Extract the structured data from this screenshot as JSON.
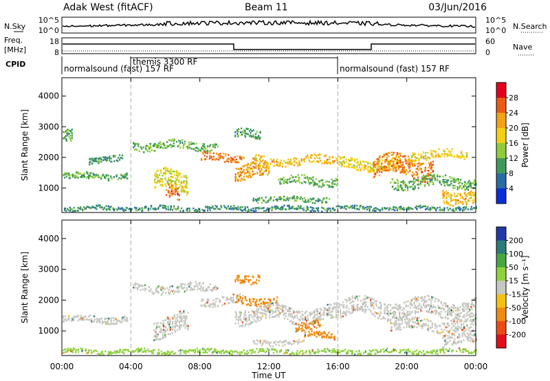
{
  "header": {
    "station": "Adak West (fitACF)",
    "beam": "Beam 11",
    "date": "03/Jun/2016"
  },
  "noise_panel": {
    "left_label": "N.Sky",
    "right_label": "N.Search",
    "left_ticks": [
      "10^5",
      "10^0"
    ],
    "right_ticks": [
      "10^5",
      "10^0"
    ]
  },
  "freq_panel": {
    "left_label_1": "Freq.",
    "left_label_2": "[MHz]",
    "right_label": "Nave",
    "left_ticks": [
      "18",
      "8"
    ],
    "right_ticks": [
      "60",
      "0"
    ]
  },
  "cpid": {
    "label": "CPID",
    "segments": [
      "normalsound (fast) 157 RF",
      "themis 3300 RF",
      "normalsound (fast) 157 RF"
    ]
  },
  "power_colorbar": {
    "label": "Power [dB]",
    "ticks": [
      "28",
      "24",
      "20",
      "16",
      "12",
      "8",
      "4"
    ],
    "colors": [
      "#e3001b",
      "#ec5a15",
      "#f2a312",
      "#f4cf10",
      "#8fcc3a",
      "#3f9a5a",
      "#2b6aa6",
      "#0a2fd8"
    ]
  },
  "velocity_colorbar": {
    "label": "Velocity [m s⁻¹]",
    "ticks": [
      "200",
      "100",
      "50",
      "15",
      "-15",
      "-50",
      "-100",
      "-200"
    ],
    "colors": [
      "#1f3aa8",
      "#2d7c78",
      "#48a640",
      "#8ed23c",
      "#c8c8c2",
      "#f4c20e",
      "#f08a10",
      "#ec4c14",
      "#e30d1a"
    ]
  },
  "chart_data": [
    {
      "type": "heatmap",
      "title": "Power",
      "ylabel": "Slant Range [km]",
      "xlabel": "Time UT",
      "xlim": [
        0,
        24
      ],
      "ylim": [
        200,
        4600
      ],
      "xticks": [
        0,
        4,
        8,
        12,
        16,
        20,
        24
      ],
      "xtick_labels": [
        "00:00",
        "04:00",
        "08:00",
        "12:00",
        "16:00",
        "20:00",
        "00:00"
      ],
      "yticks": [
        1000,
        2000,
        3000,
        4000
      ],
      "ytick_labels": [
        "1000",
        "2000",
        "3000",
        "4000"
      ],
      "mode_boundaries_hours": [
        4,
        16
      ],
      "echo_bands": [
        {
          "t0": 0.0,
          "t1": 3.8,
          "range": 1350,
          "thickness": 150,
          "db": 9
        },
        {
          "t0": 0.0,
          "t1": 0.6,
          "range": 2600,
          "thickness": 300,
          "db": 9
        },
        {
          "t0": 1.5,
          "t1": 3.5,
          "range": 1900,
          "thickness": 150,
          "db": 8
        },
        {
          "t0": 4.1,
          "t1": 9.0,
          "range": 2350,
          "thickness": 200,
          "db": 10
        },
        {
          "t0": 5.3,
          "t1": 7.3,
          "range": 1150,
          "thickness": 450,
          "db": 15
        },
        {
          "t0": 6.0,
          "t1": 6.8,
          "range": 850,
          "thickness": 300,
          "db": 22
        },
        {
          "t0": 8.0,
          "t1": 10.5,
          "range": 1950,
          "thickness": 200,
          "db": 22
        },
        {
          "t0": 10.0,
          "t1": 12.0,
          "range": 1500,
          "thickness": 350,
          "db": 20
        },
        {
          "t0": 11.0,
          "t1": 16.0,
          "range": 1850,
          "thickness": 200,
          "db": 18
        },
        {
          "t0": 10.0,
          "t1": 11.5,
          "range": 2700,
          "thickness": 200,
          "db": 8
        },
        {
          "t0": 12.5,
          "t1": 16.0,
          "range": 1200,
          "thickness": 200,
          "db": 10
        },
        {
          "t0": 11.0,
          "t1": 15.5,
          "range": 600,
          "thickness": 120,
          "db": 9
        },
        {
          "t0": 16.0,
          "t1": 19.5,
          "range": 1750,
          "thickness": 250,
          "db": 16
        },
        {
          "t0": 18.0,
          "t1": 21.5,
          "range": 1650,
          "thickness": 450,
          "db": 22
        },
        {
          "t0": 20.0,
          "t1": 23.5,
          "range": 2050,
          "thickness": 200,
          "db": 16
        },
        {
          "t0": 19.0,
          "t1": 24.0,
          "range": 1150,
          "thickness": 250,
          "db": 10
        },
        {
          "t0": 22.0,
          "t1": 24.0,
          "range": 700,
          "thickness": 300,
          "db": 18
        },
        {
          "t0": 0.0,
          "t1": 24.0,
          "range": 300,
          "thickness": 100,
          "db": 7
        }
      ]
    },
    {
      "type": "heatmap",
      "title": "Velocity",
      "ylabel": "Slant Range [km]",
      "xlabel": "Time UT",
      "xlim": [
        0,
        24
      ],
      "ylim": [
        200,
        4600
      ],
      "xticks": [
        0,
        4,
        8,
        12,
        16,
        20,
        24
      ],
      "xtick_labels": [
        "00:00",
        "04:00",
        "08:00",
        "12:00",
        "16:00",
        "20:00",
        "00:00"
      ],
      "yticks": [
        1000,
        2000,
        3000,
        4000
      ],
      "ytick_labels": [
        "1000",
        "2000",
        "3000",
        "4000"
      ],
      "mode_boundaries_hours": [
        4,
        16
      ],
      "echo_bands": [
        {
          "t0": 0.0,
          "t1": 3.8,
          "range": 1350,
          "thickness": 150,
          "v": 0
        },
        {
          "t0": 4.1,
          "t1": 9.0,
          "range": 2350,
          "thickness": 200,
          "v": 0
        },
        {
          "t0": 5.3,
          "t1": 7.3,
          "range": 1150,
          "thickness": 450,
          "v": 0
        },
        {
          "t0": 8.0,
          "t1": 10.5,
          "range": 1950,
          "thickness": 200,
          "v": 0
        },
        {
          "t0": 10.0,
          "t1": 12.5,
          "range": 1950,
          "thickness": 180,
          "v": -40
        },
        {
          "t0": 10.0,
          "t1": 11.5,
          "range": 2700,
          "thickness": 200,
          "v": -40
        },
        {
          "t0": 10.0,
          "t1": 16.0,
          "range": 1500,
          "thickness": 350,
          "v": 0
        },
        {
          "t0": 13.5,
          "t1": 15.0,
          "range": 1150,
          "thickness": 200,
          "v": -40
        },
        {
          "t0": 14.0,
          "t1": 15.8,
          "range": 800,
          "thickness": 150,
          "v": -40
        },
        {
          "t0": 11.0,
          "t1": 14.0,
          "range": 600,
          "thickness": 120,
          "v": 0
        },
        {
          "t0": 16.0,
          "t1": 24.0,
          "range": 1700,
          "thickness": 400,
          "v": 0
        },
        {
          "t0": 19.0,
          "t1": 24.0,
          "range": 1150,
          "thickness": 250,
          "v": 0
        },
        {
          "t0": 22.0,
          "t1": 24.0,
          "range": 700,
          "thickness": 300,
          "v": 0
        },
        {
          "t0": 0.0,
          "t1": 24.0,
          "range": 300,
          "thickness": 100,
          "v": 20
        }
      ]
    }
  ]
}
